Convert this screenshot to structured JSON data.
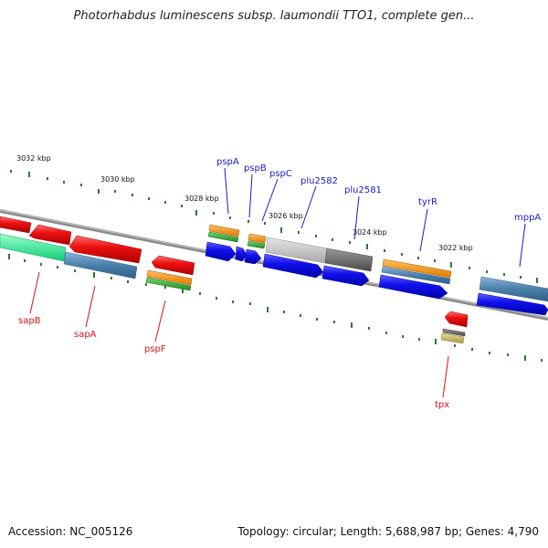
{
  "title": "Photorhabdus luminescens subsp. laumondii TTO1, complete gen...",
  "footer": {
    "accession": "Accession: NC_005126",
    "summary": "Topology: circular; Length: 5,688,987 bp; Genes: 4,790"
  },
  "scale_labels": [
    "3032 kbp",
    "3030 kbp",
    "3028 kbp",
    "3026 kbp",
    "3024 kbp",
    "3022 kbp"
  ],
  "gene_labels_top": [
    "pspA",
    "pspB",
    "pspC",
    "plu2582",
    "plu2581",
    "tyrR",
    "mppA"
  ],
  "gene_labels_bottom": [
    "sapB",
    "sapA",
    "pspF",
    "tpx"
  ],
  "colors": {
    "top_label": "#1a1acc",
    "bottom_label": "#dd1111",
    "backbone": "#808080",
    "tick": "#2a7a2a",
    "cds_forward": "#1111ee",
    "cds_reverse": "#ee1111",
    "feature_orange": "#ff9a1a",
    "feature_green": "#33aa33",
    "feature_steel": "#4a7faa",
    "feature_aqua": "#22ee99",
    "feature_gray_light": "#c0c0c0",
    "feature_gray_dark": "#707070",
    "feature_khaki": "#c8b860"
  }
}
